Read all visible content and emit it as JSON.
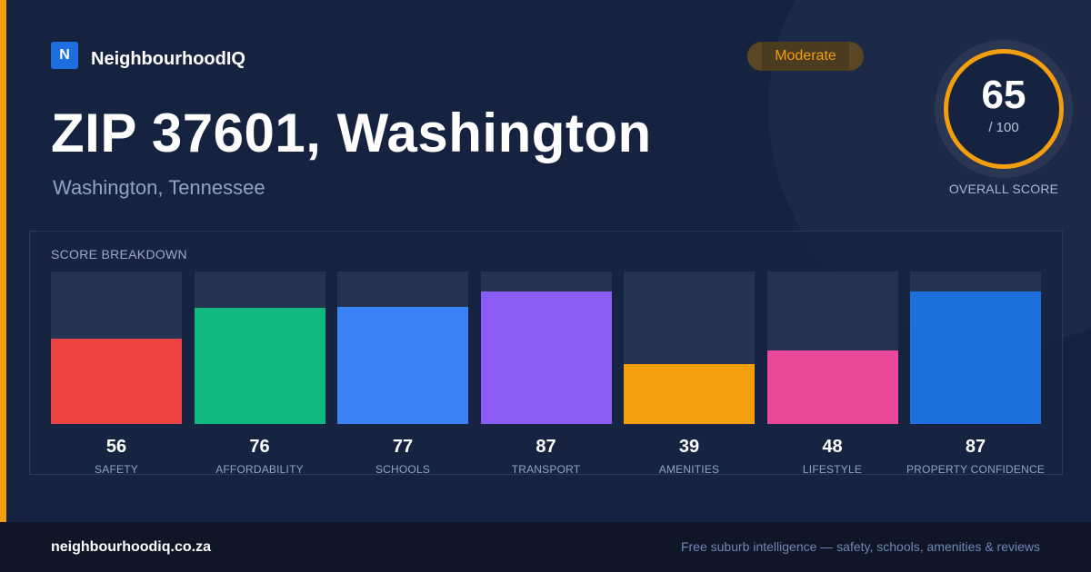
{
  "brand": {
    "logo_letter": "N",
    "name": "NeighbourhoodIQ"
  },
  "badge": {
    "label": "Moderate",
    "color": "#f59e0b"
  },
  "header": {
    "title": "ZIP 37601, Washington",
    "subtitle": "Washington, Tennessee"
  },
  "overall": {
    "score": "65",
    "max": "/ 100",
    "label": "OVERALL SCORE",
    "ring_color": "#f59e0b"
  },
  "breakdown": {
    "title": "SCORE BREAKDOWN",
    "max": 100,
    "items": [
      {
        "label": "SAFETY",
        "value": 56,
        "display": "56",
        "color": "#ef4444"
      },
      {
        "label": "AFFORDABILITY",
        "value": 76,
        "display": "76",
        "color": "#10b981"
      },
      {
        "label": "SCHOOLS",
        "value": 77,
        "display": "77",
        "color": "#3b82f6"
      },
      {
        "label": "TRANSPORT",
        "value": 87,
        "display": "87",
        "color": "#8b5cf6"
      },
      {
        "label": "AMENITIES",
        "value": 39,
        "display": "39",
        "color": "#f59e0b"
      },
      {
        "label": "LIFESTYLE",
        "value": 48,
        "display": "48",
        "color": "#ec4899"
      },
      {
        "label": "PROPERTY CONFIDENCE",
        "value": 87,
        "display": "87",
        "color": "#1d6fdc"
      }
    ]
  },
  "footer": {
    "site": "neighbourhoodiq.co.za",
    "tagline": "Free suburb intelligence — safety, schools, amenities & reviews"
  }
}
